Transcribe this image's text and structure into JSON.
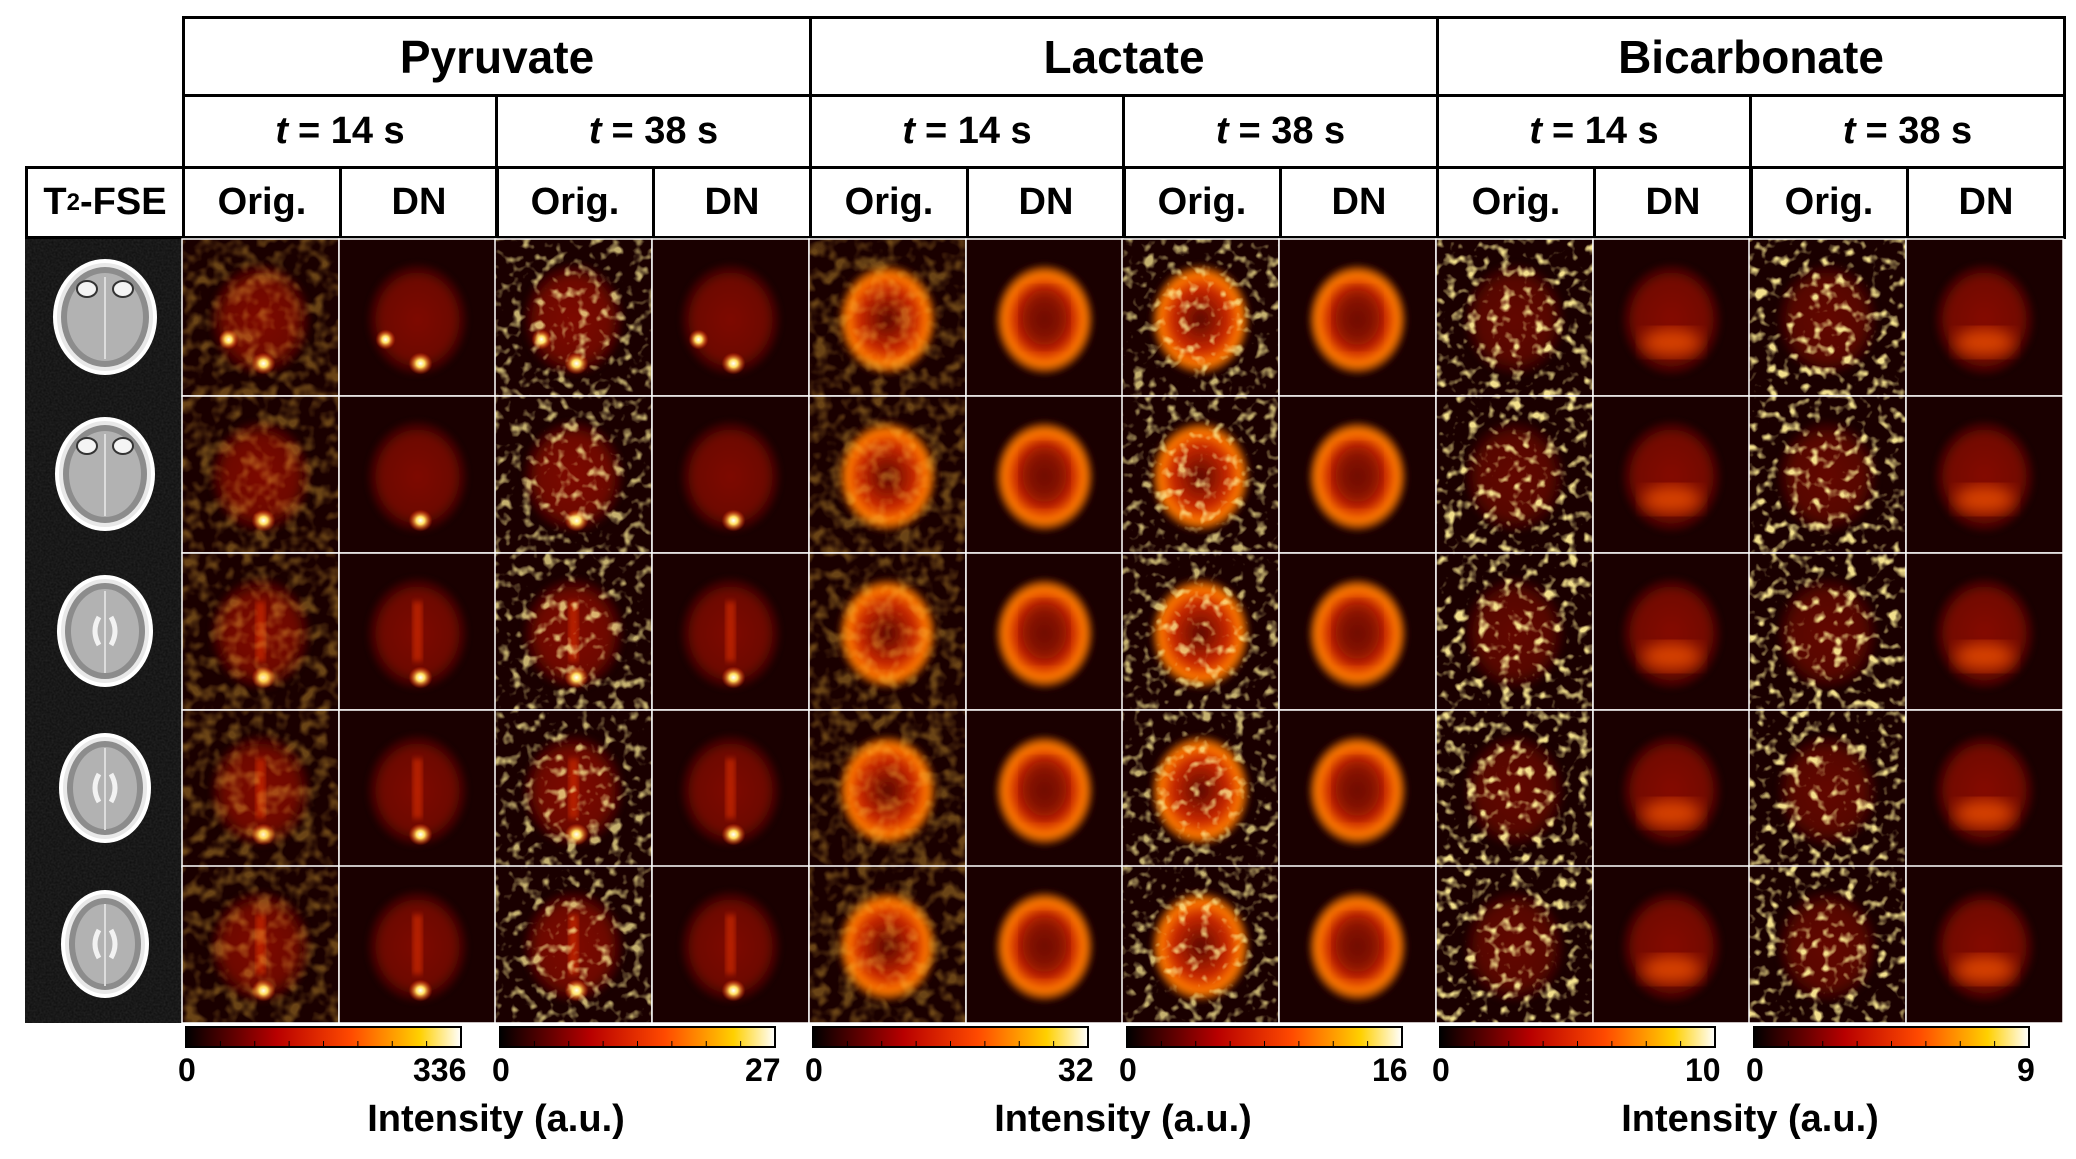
{
  "t2_label_main": "T",
  "t2_label_sub": "2",
  "t2_label_tail": "-FSE",
  "time_var": "t",
  "col_orig": "Orig.",
  "col_dn": "DN",
  "metabolites": [
    {
      "name": "Pyruvate",
      "times": [
        " = 14 s",
        " = 38 s"
      ],
      "colorbars": [
        {
          "min": "0",
          "max": "336"
        },
        {
          "min": "0",
          "max": "27"
        }
      ],
      "intensity_label": "Intensity (a.u.)"
    },
    {
      "name": "Lactate",
      "times": [
        " = 14 s",
        " = 38 s"
      ],
      "colorbars": [
        {
          "min": "0",
          "max": "32"
        },
        {
          "min": "0",
          "max": "16"
        }
      ],
      "intensity_label": "Intensity (a.u.)"
    },
    {
      "name": "Bicarbonate",
      "times": [
        " = 14 s",
        " = 38 s"
      ],
      "colorbars": [
        {
          "min": "0",
          "max": "10"
        },
        {
          "min": "0",
          "max": "9"
        }
      ],
      "intensity_label": "Intensity (a.u.)"
    }
  ],
  "colors": {
    "cmap_low": "#000000",
    "cmap_mid": "#ff2a00",
    "cmap_high": "#ffffff",
    "panel_bg": "#200000"
  }
}
